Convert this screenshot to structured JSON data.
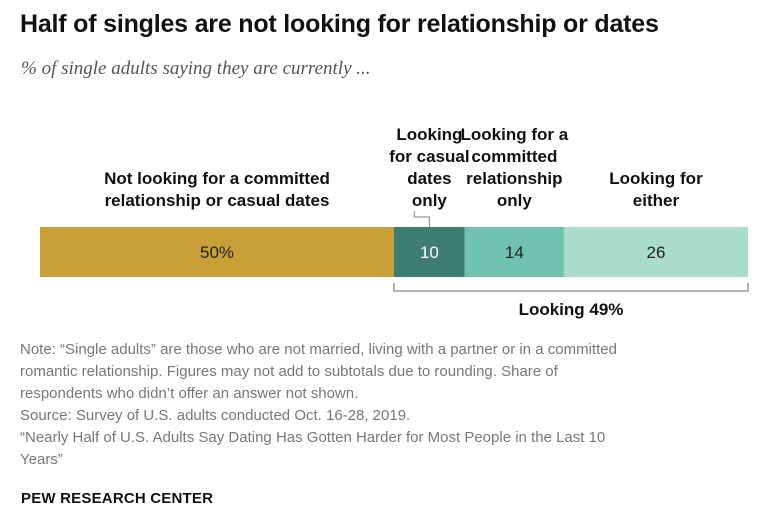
{
  "title": "Half of singles are not looking for relationship or dates",
  "subtitle": "% of single adults saying they are currently ...",
  "chart_data": {
    "type": "bar",
    "orientation": "horizontal-stacked",
    "unit": "%",
    "series": [
      {
        "name": "Not looking for a committed relationship or casual dates",
        "value": 50,
        "label": "50%",
        "color": "#c9a037"
      },
      {
        "name": "Looking for casual dates only",
        "value": 10,
        "label": "10",
        "color": "#3e7b70"
      },
      {
        "name": "Looking for a committed relationship only",
        "value": 14,
        "label": "14",
        "color": "#6fc2ae"
      },
      {
        "name": "Looking for either",
        "value": 26,
        "label": "26",
        "color": "#a9dccd"
      }
    ],
    "series_labels": [
      [
        "Not looking for a committed",
        "relationship or casual dates"
      ],
      [
        "Looking",
        "for casual",
        "dates",
        "only"
      ],
      [
        "Looking for a",
        "committed",
        "relationship",
        "only"
      ],
      [
        "Looking for",
        "either"
      ]
    ],
    "subtotal": {
      "label": "Looking 49%",
      "value": 49
    }
  },
  "notes": [
    "Note: “Single adults” are those who are not married, living with a partner or in a committed",
    "romantic relationship. Figures may not add to subtotals due to rounding. Share of",
    "respondents who didn’t offer an answer not shown.",
    "Source: Survey of U.S. adults conducted Oct. 16-28, 2019.",
    "“Nearly Half of U.S. Adults Say Dating Has Gotten Harder for Most People in the Last 10",
    "Years”"
  ],
  "brand": "PEW RESEARCH CENTER"
}
